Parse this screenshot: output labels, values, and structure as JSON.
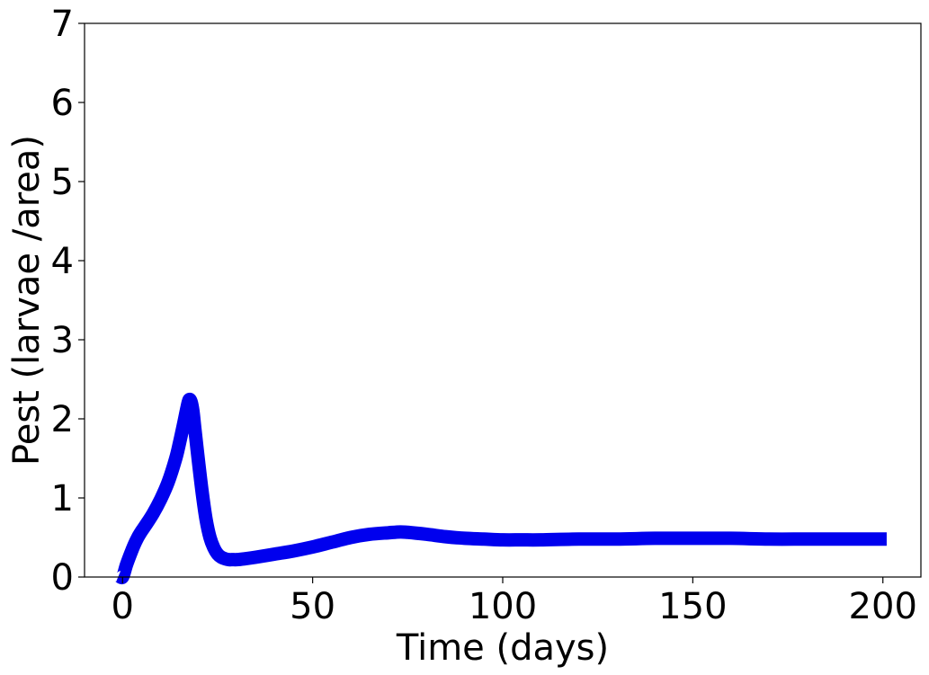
{
  "chart_data": {
    "type": "line",
    "title": "",
    "xlabel": "Time (days)",
    "ylabel": "Pest (larvae /area)",
    "xlim": [
      -10,
      210
    ],
    "ylim": [
      0,
      7
    ],
    "xticks": [
      0,
      50,
      100,
      150,
      200
    ],
    "yticks": [
      0,
      1,
      2,
      3,
      4,
      5,
      6,
      7
    ],
    "xtick_labels": [
      "0",
      "50",
      "100",
      "150",
      "200"
    ],
    "ytick_labels": [
      "0",
      "1",
      "2",
      "3",
      "4",
      "5",
      "6",
      "7"
    ],
    "grid": false,
    "legend": "none",
    "series": [
      {
        "color": "#0000ee",
        "x": [
          -1,
          0,
          1,
          2,
          3,
          4,
          5,
          6,
          8,
          10,
          12,
          14,
          15,
          16,
          17,
          17.5,
          18,
          18.5,
          19,
          20,
          21,
          22,
          23,
          24,
          25,
          26,
          27,
          28,
          29,
          30,
          32,
          35,
          40,
          45,
          50,
          55,
          60,
          65,
          70,
          73,
          75,
          80,
          85,
          90,
          95,
          100,
          105,
          110,
          120,
          130,
          140,
          150,
          160,
          170,
          180,
          190,
          201
        ],
        "y": [
          0.02,
          0.0,
          0.15,
          0.28,
          0.4,
          0.5,
          0.58,
          0.65,
          0.8,
          0.98,
          1.2,
          1.5,
          1.7,
          1.92,
          2.15,
          2.24,
          2.22,
          2.1,
          1.88,
          1.45,
          1.05,
          0.72,
          0.5,
          0.37,
          0.29,
          0.25,
          0.23,
          0.22,
          0.22,
          0.22,
          0.23,
          0.25,
          0.29,
          0.33,
          0.38,
          0.44,
          0.5,
          0.54,
          0.56,
          0.57,
          0.565,
          0.54,
          0.51,
          0.49,
          0.48,
          0.47,
          0.47,
          0.47,
          0.48,
          0.48,
          0.49,
          0.49,
          0.49,
          0.48,
          0.48,
          0.48,
          0.48
        ]
      }
    ]
  }
}
